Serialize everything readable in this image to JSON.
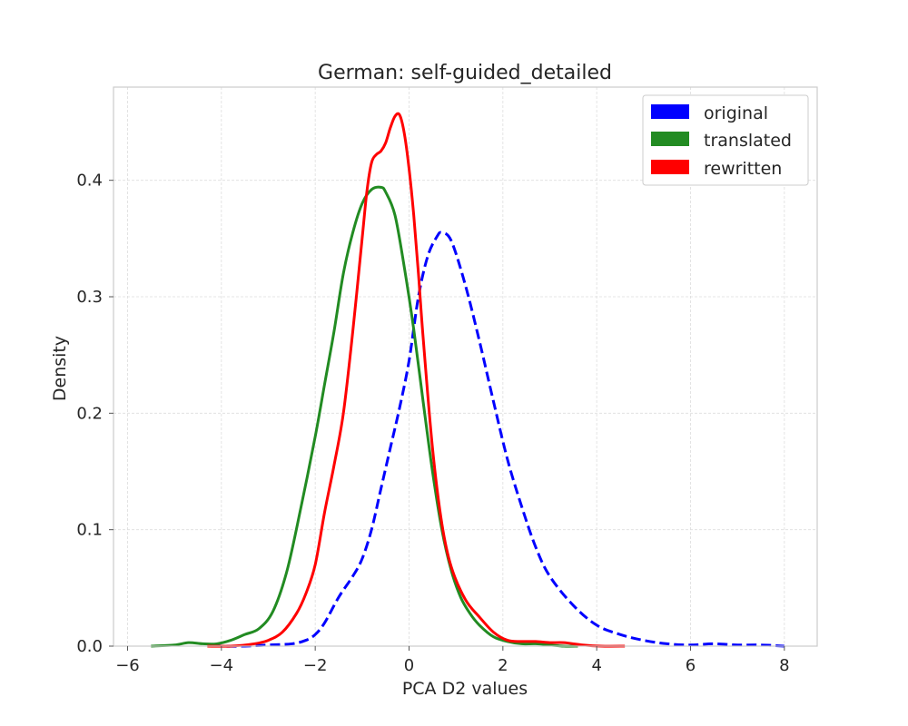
{
  "chart_data": {
    "type": "line",
    "title": "German: self-guided_detailed",
    "xlabel": "PCA D2 values",
    "ylabel": "Density",
    "xlim": [
      -6.3,
      8.7
    ],
    "ylim": [
      0,
      0.48
    ],
    "xticks": [
      -6,
      -4,
      -2,
      0,
      2,
      4,
      6,
      8
    ],
    "xtick_labels": [
      "−6",
      "−4",
      "−2",
      "0",
      "2",
      "4",
      "6",
      "8"
    ],
    "yticks": [
      0.0,
      0.1,
      0.2,
      0.3,
      0.4
    ],
    "ytick_labels": [
      "0.0",
      "0.1",
      "0.2",
      "0.3",
      "0.4"
    ],
    "grid": true,
    "legend_position": "top-right",
    "series": [
      {
        "name": "original",
        "color": "#0000ff",
        "dash": "dashed",
        "x": [
          -4.2,
          -3.5,
          -3.0,
          -2.5,
          -2.2,
          -2.0,
          -1.8,
          -1.5,
          -1.2,
          -1.0,
          -0.8,
          -0.6,
          -0.4,
          -0.2,
          0.0,
          0.2,
          0.4,
          0.6,
          0.7,
          0.9,
          1.2,
          1.5,
          1.8,
          2.1,
          2.4,
          2.7,
          3.0,
          3.5,
          4.0,
          4.5,
          5.0,
          5.5,
          6.0,
          6.5,
          7.0,
          7.5,
          8.0
        ],
        "y": [
          0.0,
          0.0,
          0.001,
          0.002,
          0.005,
          0.01,
          0.02,
          0.042,
          0.06,
          0.075,
          0.1,
          0.135,
          0.17,
          0.205,
          0.245,
          0.3,
          0.335,
          0.352,
          0.355,
          0.348,
          0.31,
          0.262,
          0.21,
          0.16,
          0.12,
          0.085,
          0.06,
          0.035,
          0.018,
          0.01,
          0.005,
          0.002,
          0.001,
          0.002,
          0.001,
          0.001,
          0.0
        ]
      },
      {
        "name": "translated",
        "color": "#228b22",
        "dash": "solid",
        "x": [
          -5.5,
          -5.0,
          -4.7,
          -4.4,
          -4.1,
          -3.8,
          -3.5,
          -3.2,
          -2.9,
          -2.6,
          -2.3,
          -2.0,
          -1.8,
          -1.6,
          -1.4,
          -1.2,
          -1.0,
          -0.8,
          -0.6,
          -0.5,
          -0.3,
          -0.1,
          0.1,
          0.3,
          0.5,
          0.7,
          0.9,
          1.1,
          1.3,
          1.5,
          1.8,
          2.1,
          2.4,
          2.7,
          3.0,
          3.3,
          3.6
        ],
        "y": [
          0.0,
          0.001,
          0.003,
          0.002,
          0.002,
          0.005,
          0.01,
          0.015,
          0.03,
          0.065,
          0.12,
          0.18,
          0.225,
          0.27,
          0.32,
          0.355,
          0.38,
          0.392,
          0.394,
          0.39,
          0.37,
          0.325,
          0.272,
          0.21,
          0.15,
          0.1,
          0.065,
          0.042,
          0.028,
          0.018,
          0.008,
          0.004,
          0.002,
          0.002,
          0.001,
          0.0,
          0.0
        ]
      },
      {
        "name": "rewritten",
        "color": "#ff0000",
        "dash": "solid",
        "x": [
          -4.3,
          -3.8,
          -3.3,
          -3.0,
          -2.7,
          -2.4,
          -2.2,
          -2.0,
          -1.8,
          -1.6,
          -1.4,
          -1.2,
          -1.0,
          -0.9,
          -0.8,
          -0.7,
          -0.6,
          -0.5,
          -0.4,
          -0.3,
          -0.2,
          -0.1,
          0.0,
          0.1,
          0.2,
          0.3,
          0.5,
          0.7,
          0.9,
          1.2,
          1.5,
          1.8,
          2.1,
          2.4,
          2.7,
          3.0,
          3.3,
          3.7,
          4.1,
          4.6
        ],
        "y": [
          0.0,
          0.0,
          0.002,
          0.005,
          0.012,
          0.028,
          0.045,
          0.07,
          0.115,
          0.155,
          0.2,
          0.27,
          0.35,
          0.39,
          0.415,
          0.422,
          0.425,
          0.432,
          0.445,
          0.455,
          0.456,
          0.44,
          0.41,
          0.37,
          0.32,
          0.265,
          0.17,
          0.105,
          0.068,
          0.04,
          0.025,
          0.012,
          0.005,
          0.004,
          0.004,
          0.003,
          0.003,
          0.001,
          0.0,
          0.0
        ]
      }
    ]
  }
}
